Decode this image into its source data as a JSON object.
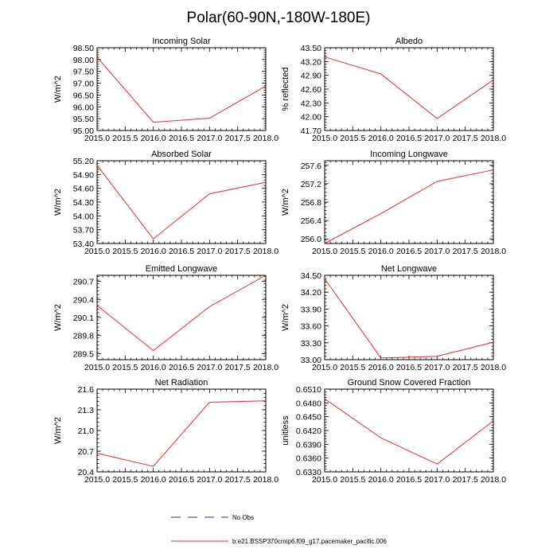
{
  "title": "Polar(60-90N,-180W-180E)",
  "chart_data": [
    {
      "type": "line",
      "title": "Incoming Solar",
      "xlabel": "",
      "ylabel": "W/m^2",
      "x": [
        2015.0,
        2016.0,
        2017.0,
        2018.0
      ],
      "series": [
        {
          "name": "b.e21.BSSP370cmip6.f09_g17.pacemaker_pacific.006",
          "values": [
            98.1,
            95.35,
            95.52,
            96.88
          ]
        }
      ],
      "xlim": [
        2015.0,
        2018.0
      ],
      "ylim": [
        95.0,
        98.5
      ],
      "xticks": [
        "2015.0",
        "2015.5",
        "2016.0",
        "2016.5",
        "2017.0",
        "2017.5",
        "2018.0"
      ],
      "yticks": [
        "95.00",
        "95.50",
        "96.00",
        "96.50",
        "97.00",
        "97.50",
        "98.00",
        "98.50"
      ],
      "color": "#e8262b"
    },
    {
      "type": "line",
      "title": "Albedo",
      "xlabel": "",
      "ylabel": "% reflected",
      "x": [
        2015.0,
        2016.0,
        2017.0,
        2018.0
      ],
      "series": [
        {
          "name": "b.e21.BSSP370cmip6.f09_g17.pacemaker_pacific.006",
          "values": [
            43.3,
            42.93,
            41.96,
            42.8
          ]
        }
      ],
      "xlim": [
        2015.0,
        2018.0
      ],
      "ylim": [
        41.7,
        43.5
      ],
      "xticks": [
        "2015.0",
        "2015.5",
        "2016.0",
        "2016.5",
        "2017.0",
        "2017.5",
        "2018.0"
      ],
      "yticks": [
        "41.70",
        "42.00",
        "42.30",
        "42.60",
        "42.90",
        "43.20",
        "43.50"
      ],
      "color": "#e8262b"
    },
    {
      "type": "line",
      "title": "Absorbed Solar",
      "xlabel": "",
      "ylabel": "W/m^2",
      "x": [
        2015.0,
        2016.0,
        2017.0,
        2018.0
      ],
      "series": [
        {
          "name": "b.e21.BSSP370cmip6.f09_g17.pacemaker_pacific.006",
          "values": [
            55.1,
            53.5,
            54.48,
            54.73
          ]
        }
      ],
      "xlim": [
        2015.0,
        2018.0
      ],
      "ylim": [
        53.4,
        55.2
      ],
      "xticks": [
        "2015.0",
        "2015.5",
        "2016.0",
        "2016.5",
        "2017.0",
        "2017.5",
        "2018.0"
      ],
      "yticks": [
        "53.40",
        "53.70",
        "54.00",
        "54.30",
        "54.60",
        "54.90",
        "55.20"
      ],
      "color": "#e8262b"
    },
    {
      "type": "line",
      "title": "Incoming Longwave",
      "xlabel": "",
      "ylabel": "W/m^2",
      "x": [
        2015.0,
        2016.0,
        2017.0,
        2018.0
      ],
      "series": [
        {
          "name": "b.e21.BSSP370cmip6.f09_g17.pacemaker_pacific.006",
          "values": [
            255.9,
            256.55,
            257.25,
            257.5
          ]
        }
      ],
      "xlim": [
        2015.0,
        2018.0
      ],
      "ylim": [
        255.9,
        257.7
      ],
      "xticks": [
        "2015.0",
        "2015.5",
        "2016.0",
        "2016.5",
        "2017.0",
        "2017.5",
        "2018.0"
      ],
      "yticks": [
        "256.0",
        "256.4",
        "256.8",
        "257.2",
        "257.6"
      ],
      "ytick_values": [
        256.0,
        256.4,
        256.8,
        257.2,
        257.6
      ],
      "color": "#e8262b"
    },
    {
      "type": "line",
      "title": "Emitted Longwave",
      "xlabel": "",
      "ylabel": "W/m^2",
      "x": [
        2015.0,
        2016.0,
        2017.0,
        2018.0
      ],
      "series": [
        {
          "name": "b.e21.BSSP370cmip6.f09_g17.pacemaker_pacific.006",
          "values": [
            290.3,
            289.55,
            290.28,
            290.8
          ]
        }
      ],
      "xlim": [
        2015.0,
        2018.0
      ],
      "ylim": [
        289.4,
        290.8
      ],
      "xticks": [
        "2015.0",
        "2015.5",
        "2016.0",
        "2016.5",
        "2017.0",
        "2017.5",
        "2018.0"
      ],
      "yticks": [
        "289.5",
        "289.8",
        "290.1",
        "290.4",
        "290.7"
      ],
      "ytick_values": [
        289.5,
        289.8,
        290.1,
        290.4,
        290.7
      ],
      "color": "#e8262b"
    },
    {
      "type": "line",
      "title": "Net Longwave",
      "xlabel": "",
      "ylabel": "W/m^2",
      "x": [
        2015.0,
        2016.0,
        2017.0,
        2018.0
      ],
      "series": [
        {
          "name": "b.e21.BSSP370cmip6.f09_g17.pacemaker_pacific.006",
          "values": [
            34.44,
            33.03,
            33.06,
            33.31
          ]
        }
      ],
      "xlim": [
        2015.0,
        2018.0
      ],
      "ylim": [
        33.0,
        34.5
      ],
      "xticks": [
        "2015.0",
        "2015.5",
        "2016.0",
        "2016.5",
        "2017.0",
        "2017.5",
        "2018.0"
      ],
      "yticks": [
        "33.00",
        "33.30",
        "33.60",
        "33.90",
        "34.20",
        "34.50"
      ],
      "color": "#e8262b"
    },
    {
      "type": "line",
      "title": "Net Radiation",
      "xlabel": "",
      "ylabel": "W/m^2",
      "x": [
        2015.0,
        2016.0,
        2017.0,
        2018.0
      ],
      "series": [
        {
          "name": "b.e21.BSSP370cmip6.f09_g17.pacemaker_pacific.006",
          "values": [
            20.67,
            20.48,
            21.41,
            21.43
          ]
        }
      ],
      "xlim": [
        2015.0,
        2018.0
      ],
      "ylim": [
        20.4,
        21.6
      ],
      "xticks": [
        "2015.0",
        "2015.5",
        "2016.0",
        "2016.5",
        "2017.0",
        "2017.5",
        "2018.0"
      ],
      "yticks": [
        "20.4",
        "20.7",
        "21.0",
        "21.3",
        "21.6"
      ],
      "color": "#e8262b"
    },
    {
      "type": "line",
      "title": "Ground Snow Covered Fraction",
      "xlabel": "",
      "ylabel": "unitless",
      "x": [
        2015.0,
        2016.0,
        2017.0,
        2018.0
      ],
      "series": [
        {
          "name": "b.e21.BSSP370cmip6.f09_g17.pacemaker_pacific.006",
          "values": [
            0.6489,
            0.6404,
            0.6347,
            0.6441
          ]
        }
      ],
      "xlim": [
        2015.0,
        2018.0
      ],
      "ylim": [
        0.633,
        0.651
      ],
      "xticks": [
        "2015.0",
        "2015.5",
        "2016.0",
        "2016.5",
        "2017.0",
        "2017.5",
        "2018.0"
      ],
      "yticks": [
        "0.6330",
        "0.6360",
        "0.6390",
        "0.6420",
        "0.6450",
        "0.6480",
        "0.6510"
      ],
      "color": "#e8262b"
    }
  ],
  "legend": {
    "placement": "bottom-center",
    "entries": [
      {
        "label": "No Obs",
        "style": "dashed",
        "color": "#2b2b8c"
      },
      {
        "label": "b.e21.BSSP370cmip6.f09_g17.pacemaker_pacific.006",
        "style": "solid",
        "color": "#e8262b"
      }
    ]
  }
}
